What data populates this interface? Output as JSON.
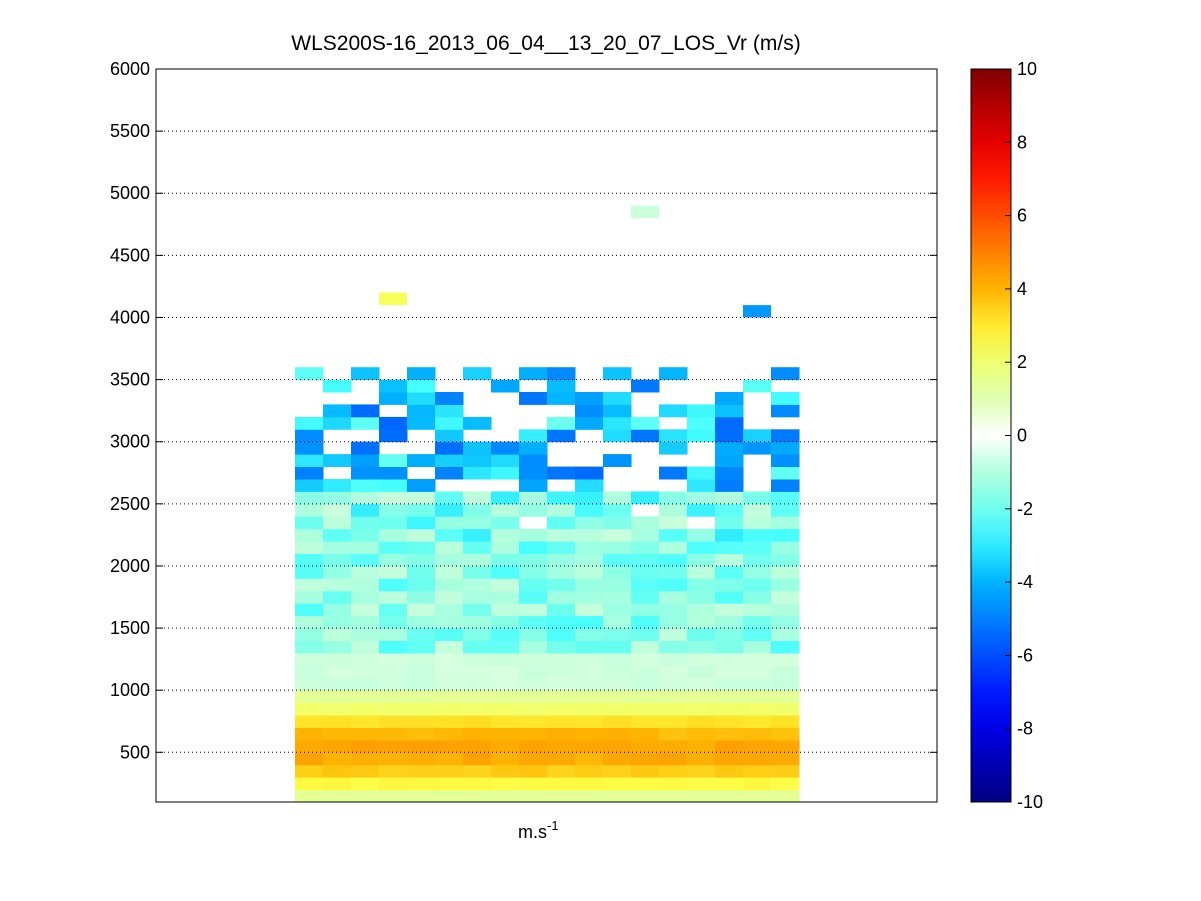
{
  "chart_data": {
    "type": "heatmap",
    "title": "WLS200S-16_2013_06_04__13_20_07_LOS_Vr (m/s)",
    "xlabel": "m.s",
    "xlabel_exponent": "-1",
    "ylabel": "",
    "ylim": [
      100,
      6000
    ],
    "y_ticks": [
      500,
      1000,
      1500,
      2000,
      2500,
      3000,
      3500,
      4000,
      4500,
      5000,
      5500,
      6000
    ],
    "y_tick_labels": [
      "500",
      "1000",
      "1500",
      "2000",
      "2500",
      "3000",
      "3500",
      "4000",
      "4500",
      "5000",
      "5500",
      "6000"
    ],
    "grid": "horizontal dotted at y ticks",
    "colorbar": {
      "colormap": "jet",
      "range": [
        -10,
        10
      ],
      "ticks": [
        10,
        8,
        6,
        4,
        2,
        0,
        -2,
        -4,
        -6,
        -8,
        -10
      ],
      "tick_labels": [
        "10",
        "8",
        "6",
        "4",
        "2",
        "0",
        "-2",
        "-4",
        "-6",
        "-8",
        "-10"
      ],
      "placement": "right"
    },
    "x_columns": 18,
    "altitude_step_m": 100,
    "layers": [
      {
        "altitude_range_m": [
          100,
          1000
        ],
        "velocity_range_ms": [
          1.5,
          4.5
        ]
      },
      {
        "altitude_range_m": [
          1000,
          1300
        ],
        "velocity_range_ms": [
          -0.6,
          -0.2
        ]
      },
      {
        "altitude_range_m": [
          1300,
          2200
        ],
        "velocity_range_ms": [
          -2.5,
          -0.6
        ]
      },
      {
        "altitude_range_m": [
          2200,
          2600
        ],
        "velocity_range_ms": [
          -3.0,
          -0.5
        ]
      },
      {
        "altitude_range_m": [
          2600,
          3600
        ],
        "velocity_range_ms": [
          -5.5,
          -2.0
        ]
      }
    ],
    "isolated_cells": [
      {
        "column": 3,
        "altitude_m": 4150,
        "velocity_ms": 2.3
      },
      {
        "column": 12,
        "altitude_m": 4850,
        "velocity_ms": -0.5
      },
      {
        "column": 16,
        "altitude_m": 4050,
        "velocity_ms": -4.5
      }
    ]
  }
}
